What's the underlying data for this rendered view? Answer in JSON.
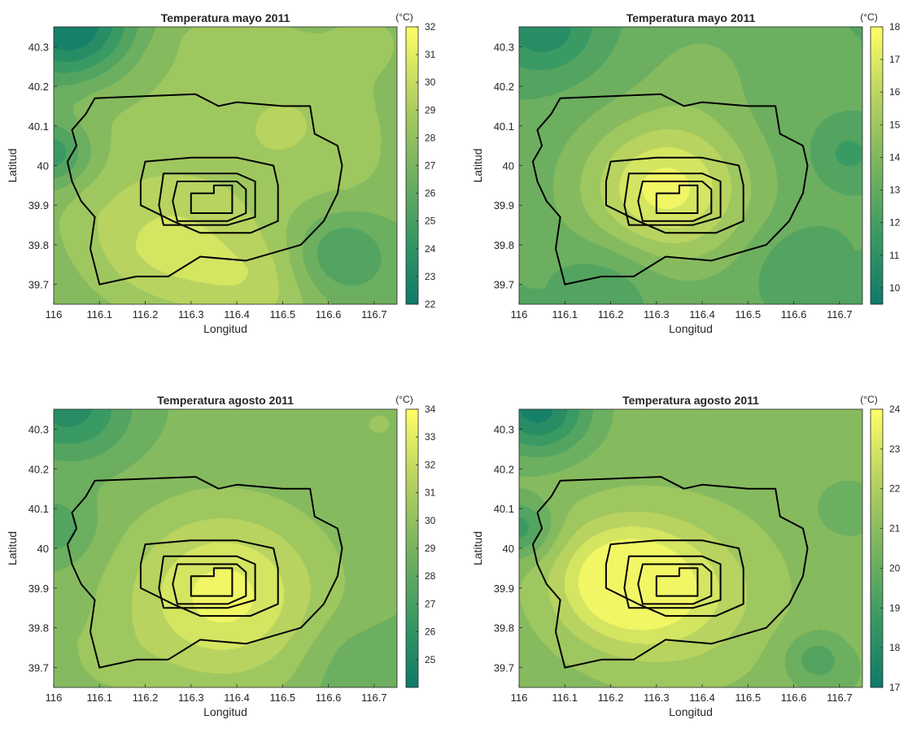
{
  "figure": {
    "cbar_unit": "(°C)"
  },
  "chart_data": [
    {
      "type": "heatmap",
      "title": "Temperatura mayo 2011",
      "xlabel": "Longitud",
      "ylabel": "Latitud",
      "xlim": [
        116,
        116.75
      ],
      "ylim": [
        39.65,
        40.35
      ],
      "x_ticks": [
        "116",
        "116.1",
        "116.2",
        "116.3",
        "116.4",
        "116.5",
        "116.6",
        "116.7"
      ],
      "y_ticks": [
        "39.7",
        "39.8",
        "39.9",
        "40",
        "40.1",
        "40.2",
        "40.3"
      ],
      "colorbar": {
        "label": "(°C)",
        "min": 22,
        "max": 32,
        "ticks": [
          "22",
          "23",
          "24",
          "25",
          "26",
          "27",
          "28",
          "29",
          "30",
          "31",
          "32"
        ]
      },
      "colormap": [
        "#0e7a69",
        "#3a9a63",
        "#79b45f",
        "#b8d35f",
        "#ffff66"
      ],
      "field": {
        "base": 28.3,
        "decline_radius": 0.3,
        "decline_per_deg": 6,
        "bumps": [
          {
            "x": 116.04,
            "y": 40.35,
            "amp": -5.5,
            "r": 0.1
          },
          {
            "x": 116.0,
            "y": 40.03,
            "amp": -3.5,
            "r": 0.06
          },
          {
            "x": 116.62,
            "y": 39.78,
            "amp": -3.0,
            "r": 0.08
          },
          {
            "x": 116.25,
            "y": 39.8,
            "amp": 2.0,
            "r": 0.12
          },
          {
            "x": 116.45,
            "y": 39.68,
            "amp": 1.5,
            "r": 0.1
          },
          {
            "x": 116.7,
            "y": 40.32,
            "amp": 1.0,
            "r": 0.06
          },
          {
            "x": 116.5,
            "y": 40.1,
            "amp": 0.8,
            "r": 0.1
          }
        ]
      }
    },
    {
      "type": "heatmap",
      "title": "Temperatura mayo 2011",
      "xlabel": "Longitud",
      "ylabel": "Latitud",
      "xlim": [
        116,
        116.75
      ],
      "ylim": [
        39.65,
        40.35
      ],
      "x_ticks": [
        "116",
        "116.1",
        "116.2",
        "116.3",
        "116.4",
        "116.5",
        "116.6",
        "116.7"
      ],
      "y_ticks": [
        "39.7",
        "39.8",
        "39.9",
        "40",
        "40.1",
        "40.2",
        "40.3"
      ],
      "colorbar": {
        "label": "(°C)",
        "min": 9.5,
        "max": 18,
        "ticks": [
          "10",
          "11",
          "12",
          "13",
          "14",
          "15",
          "16",
          "17",
          "18"
        ]
      },
      "colormap": [
        "#0e7a69",
        "#3a9a63",
        "#79b45f",
        "#b8d35f",
        "#ffff66"
      ],
      "field": {
        "base": 13.0,
        "decline_radius": 0.45,
        "decline_per_deg": 3,
        "bumps": [
          {
            "x": 116.32,
            "y": 39.94,
            "amp": 4.5,
            "r": 0.13
          },
          {
            "x": 116.05,
            "y": 40.35,
            "amp": -2.5,
            "r": 0.08
          },
          {
            "x": 116.2,
            "y": 39.72,
            "amp": -1.0,
            "r": 0.08
          },
          {
            "x": 116.6,
            "y": 39.75,
            "amp": -0.8,
            "r": 0.07
          },
          {
            "x": 116.72,
            "y": 40.03,
            "amp": -1.2,
            "r": 0.05
          },
          {
            "x": 116.4,
            "y": 40.25,
            "amp": 0.8,
            "r": 0.1
          }
        ]
      }
    },
    {
      "type": "heatmap",
      "title": "Temperatura agosto 2011",
      "xlabel": "Longitud",
      "ylabel": "Latitud",
      "xlim": [
        116,
        116.75
      ],
      "ylim": [
        39.65,
        40.35
      ],
      "x_ticks": [
        "116",
        "116.1",
        "116.2",
        "116.3",
        "116.4",
        "116.5",
        "116.6",
        "116.7"
      ],
      "y_ticks": [
        "39.7",
        "39.8",
        "39.9",
        "40",
        "40.1",
        "40.2",
        "40.3"
      ],
      "colorbar": {
        "label": "(°C)",
        "min": 24,
        "max": 34,
        "ticks": [
          "25",
          "26",
          "27",
          "28",
          "29",
          "30",
          "31",
          "32",
          "33",
          "34"
        ]
      },
      "colormap": [
        "#0e7a69",
        "#3a9a63",
        "#79b45f",
        "#b8d35f",
        "#ffff66"
      ],
      "field": {
        "base": 29.2,
        "decline_radius": 0.4,
        "decline_per_deg": 5,
        "bumps": [
          {
            "x": 116.37,
            "y": 39.88,
            "amp": 4.2,
            "r": 0.15
          },
          {
            "x": 116.04,
            "y": 40.35,
            "amp": -3.5,
            "r": 0.09
          },
          {
            "x": 116.0,
            "y": 40.05,
            "amp": -2.0,
            "r": 0.06
          },
          {
            "x": 116.65,
            "y": 39.72,
            "amp": -1.0,
            "r": 0.08
          },
          {
            "x": 116.72,
            "y": 40.32,
            "amp": 1.2,
            "r": 0.05
          },
          {
            "x": 116.1,
            "y": 39.7,
            "amp": 0.8,
            "r": 0.08
          }
        ]
      }
    },
    {
      "type": "heatmap",
      "title": "Temperatura agosto 2011",
      "xlabel": "Longitud",
      "ylabel": "Latitud",
      "xlim": [
        116,
        116.75
      ],
      "ylim": [
        39.65,
        40.35
      ],
      "x_ticks": [
        "116",
        "116.1",
        "116.2",
        "116.3",
        "116.4",
        "116.5",
        "116.6",
        "116.7"
      ],
      "y_ticks": [
        "39.7",
        "39.8",
        "39.9",
        "40",
        "40.1",
        "40.2",
        "40.3"
      ],
      "colorbar": {
        "label": "(°C)",
        "min": 17,
        "max": 24,
        "ticks": [
          "17",
          "18",
          "19",
          "20",
          "21",
          "22",
          "23",
          "24"
        ]
      },
      "colormap": [
        "#0e7a69",
        "#3a9a63",
        "#79b45f",
        "#b8d35f",
        "#ffff66"
      ],
      "field": {
        "base": 20.9,
        "decline_radius": 0.45,
        "decline_per_deg": 3,
        "bumps": [
          {
            "x": 116.22,
            "y": 39.92,
            "amp": 3.0,
            "r": 0.1
          },
          {
            "x": 116.35,
            "y": 39.88,
            "amp": 1.8,
            "r": 0.13
          },
          {
            "x": 116.04,
            "y": 40.35,
            "amp": -3.5,
            "r": 0.08
          },
          {
            "x": 116.0,
            "y": 40.05,
            "amp": -2.2,
            "r": 0.05
          },
          {
            "x": 116.65,
            "y": 39.72,
            "amp": -1.5,
            "r": 0.05
          },
          {
            "x": 116.72,
            "y": 40.1,
            "amp": -0.8,
            "r": 0.06
          }
        ]
      }
    }
  ],
  "ring_roads": [
    [
      [
        116.09,
        40.17
      ],
      [
        116.31,
        40.18
      ],
      [
        116.36,
        40.15
      ],
      [
        116.4,
        40.16
      ],
      [
        116.5,
        40.15
      ],
      [
        116.56,
        40.15
      ],
      [
        116.57,
        40.08
      ],
      [
        116.62,
        40.05
      ],
      [
        116.63,
        40.0
      ],
      [
        116.62,
        39.93
      ],
      [
        116.59,
        39.86
      ],
      [
        116.54,
        39.8
      ],
      [
        116.42,
        39.76
      ],
      [
        116.32,
        39.77
      ],
      [
        116.25,
        39.72
      ],
      [
        116.18,
        39.72
      ],
      [
        116.1,
        39.7
      ],
      [
        116.08,
        39.79
      ],
      [
        116.09,
        39.87
      ],
      [
        116.06,
        39.91
      ],
      [
        116.04,
        39.96
      ],
      [
        116.03,
        40.01
      ],
      [
        116.05,
        40.05
      ],
      [
        116.04,
        40.09
      ],
      [
        116.07,
        40.13
      ]
    ],
    [
      [
        116.2,
        40.01
      ],
      [
        116.3,
        40.02
      ],
      [
        116.4,
        40.02
      ],
      [
        116.48,
        40.0
      ],
      [
        116.49,
        39.95
      ],
      [
        116.49,
        39.86
      ],
      [
        116.43,
        39.83
      ],
      [
        116.32,
        39.83
      ],
      [
        116.26,
        39.86
      ],
      [
        116.19,
        39.9
      ],
      [
        116.19,
        39.96
      ]
    ],
    [
      [
        116.24,
        39.98
      ],
      [
        116.4,
        39.98
      ],
      [
        116.44,
        39.96
      ],
      [
        116.44,
        39.87
      ],
      [
        116.38,
        39.85
      ],
      [
        116.24,
        39.85
      ],
      [
        116.23,
        39.9
      ]
    ],
    [
      [
        116.27,
        39.96
      ],
      [
        116.4,
        39.96
      ],
      [
        116.42,
        39.94
      ],
      [
        116.42,
        39.88
      ],
      [
        116.38,
        39.86
      ],
      [
        116.27,
        39.86
      ],
      [
        116.26,
        39.91
      ]
    ],
    [
      [
        116.3,
        39.93
      ],
      [
        116.35,
        39.93
      ],
      [
        116.35,
        39.95
      ],
      [
        116.39,
        39.95
      ],
      [
        116.39,
        39.88
      ],
      [
        116.3,
        39.88
      ]
    ]
  ]
}
